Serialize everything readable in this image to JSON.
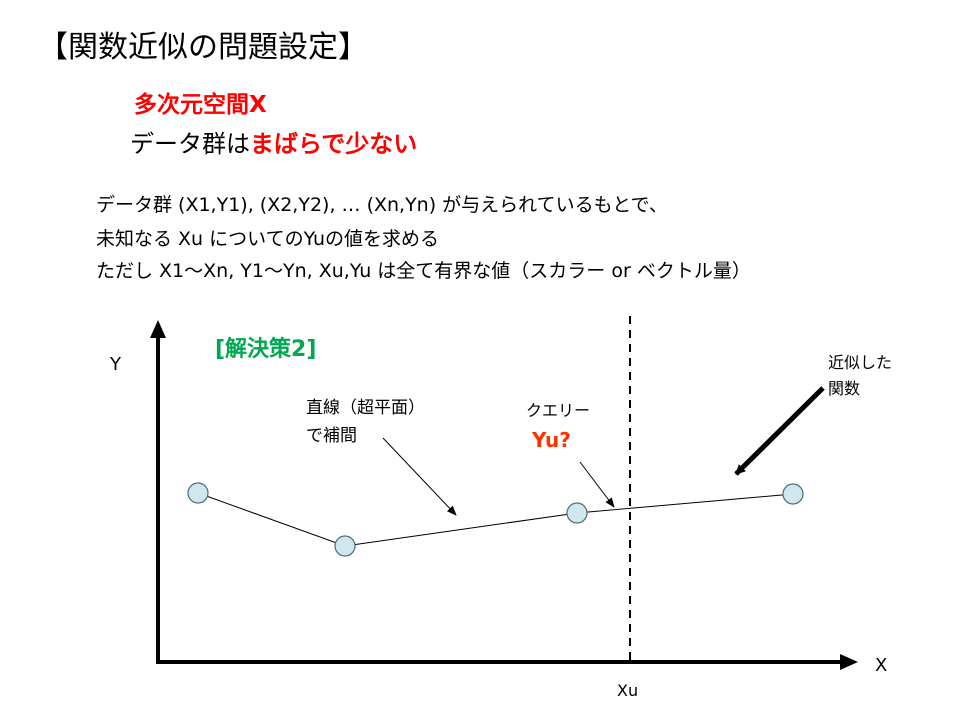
{
  "slide": {
    "title": "【関数近似の問題設定】",
    "subtitle_line1": "多次元空間X",
    "subtitle_line2_prefix": "データ群は",
    "subtitle_line2_highlight": "まばらで少ない",
    "body_line1": "データ群 (X1,Y1), (X2,Y2), … (Xn,Yn) が与えられているもとで、",
    "body_line2": "未知なる Xu についてのYuの値を求める",
    "body_line3": "ただし X1～Xn, Y1～Yn, Xu,Yu は全て有界な値（スカラー or ベクトル量）"
  },
  "diagram": {
    "solution_label": "[解決策2]",
    "y_axis_label": "Y",
    "x_axis_label": "X",
    "xu_label": "Xu",
    "line_annotation_1": "直線（超平面）",
    "line_annotation_2": "で補間",
    "query_annotation": "クエリー",
    "query_value": "Yu?",
    "function_annotation_1": "近似した",
    "function_annotation_2": "関数",
    "colors": {
      "axis": "#000000",
      "point_fill": "#cfe7ef",
      "point_stroke": "#4d6b73",
      "accent_red": "#ff0000",
      "accent_green": "#00a84f"
    }
  }
}
